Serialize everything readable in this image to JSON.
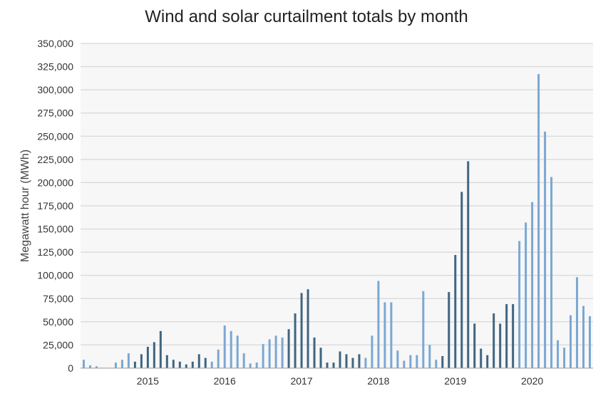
{
  "chart_data": {
    "type": "bar",
    "title": "Wind and solar curtailment totals by month",
    "xlabel": "",
    "ylabel": "Megawatt hour (MWh)",
    "ylim": [
      0,
      350000
    ],
    "y_ticks": [
      "0",
      "25,000",
      "50,000",
      "75,000",
      "100,000",
      "125,000",
      "150,000",
      "175,000",
      "200,000",
      "225,000",
      "250,000",
      "275,000",
      "300,000",
      "325,000",
      "350,000"
    ],
    "x_tick_labels": [
      "2015",
      "2016",
      "2017",
      "2018",
      "2019",
      "2020"
    ],
    "x_tick_positions": [
      "2015-03",
      "2016-03",
      "2017-03",
      "2018-03",
      "2019-03",
      "2020-03"
    ],
    "categories": [
      "2014-05",
      "2014-06",
      "2014-07",
      "2014-08",
      "2014-09",
      "2014-10",
      "2014-11",
      "2014-12",
      "2015-01",
      "2015-02",
      "2015-03",
      "2015-04",
      "2015-05",
      "2015-06",
      "2015-07",
      "2015-08",
      "2015-09",
      "2015-10",
      "2015-11",
      "2015-12",
      "2016-01",
      "2016-02",
      "2016-03",
      "2016-04",
      "2016-05",
      "2016-06",
      "2016-07",
      "2016-08",
      "2016-09",
      "2016-10",
      "2016-11",
      "2016-12",
      "2017-01",
      "2017-02",
      "2017-03",
      "2017-04",
      "2017-05",
      "2017-06",
      "2017-07",
      "2017-08",
      "2017-09",
      "2017-10",
      "2017-11",
      "2017-12",
      "2018-01",
      "2018-02",
      "2018-03",
      "2018-04",
      "2018-05",
      "2018-06",
      "2018-07",
      "2018-08",
      "2018-09",
      "2018-10",
      "2018-11",
      "2018-12",
      "2019-01",
      "2019-02",
      "2019-03",
      "2019-04",
      "2019-05",
      "2019-06",
      "2019-07",
      "2019-08",
      "2019-09",
      "2019-10",
      "2019-11",
      "2019-12",
      "2020-01",
      "2020-02",
      "2020-03",
      "2020-04",
      "2020-05",
      "2020-06",
      "2020-07",
      "2020-08",
      "2020-09",
      "2020-10",
      "2020-11",
      "2020-12"
    ],
    "values": [
      9000,
      3000,
      2000,
      0,
      0,
      6000,
      9000,
      16000,
      7000,
      15000,
      23000,
      28000,
      40000,
      14000,
      9000,
      7000,
      4000,
      7000,
      15000,
      11000,
      7000,
      20000,
      46000,
      40000,
      35000,
      16000,
      5000,
      6000,
      26000,
      31000,
      35000,
      33000,
      42000,
      59000,
      81000,
      85000,
      33000,
      22000,
      6000,
      6000,
      18000,
      15000,
      11000,
      15000,
      11000,
      35000,
      94000,
      71000,
      71000,
      19000,
      8000,
      14000,
      14000,
      83000,
      25000,
      9000,
      13000,
      82000,
      122000,
      190000,
      223000,
      48000,
      21000,
      14000,
      59000,
      48000,
      69000,
      69000,
      137000,
      157000,
      179000,
      317000,
      255000,
      206000,
      30000,
      22000,
      57000,
      98000,
      67000,
      56000
    ],
    "bar_colors": [
      "#7ba7d3",
      "#7ba7d3",
      "#7ba7d3",
      "#7ba7d3",
      "#7ba7d3",
      "#7ba7d3",
      "#7ba7d3",
      "#7ba7d3",
      "#3f6581",
      "#3f6581",
      "#3f6581",
      "#3f6581",
      "#3f6581",
      "#3f6581",
      "#3f6581",
      "#3f6581",
      "#3f6581",
      "#3f6581",
      "#3f6581",
      "#3f6581",
      "#7ba7d3",
      "#7ba7d3",
      "#7ba7d3",
      "#7ba7d3",
      "#7ba7d3",
      "#7ba7d3",
      "#7ba7d3",
      "#7ba7d3",
      "#7ba7d3",
      "#7ba7d3",
      "#7ba7d3",
      "#7ba7d3",
      "#3f6581",
      "#3f6581",
      "#3f6581",
      "#3f6581",
      "#3f6581",
      "#3f6581",
      "#3f6581",
      "#3f6581",
      "#3f6581",
      "#3f6581",
      "#3f6581",
      "#3f6581",
      "#7ba7d3",
      "#7ba7d3",
      "#7ba7d3",
      "#7ba7d3",
      "#7ba7d3",
      "#7ba7d3",
      "#7ba7d3",
      "#7ba7d3",
      "#7ba7d3",
      "#7ba7d3",
      "#7ba7d3",
      "#7ba7d3",
      "#3f6581",
      "#3f6581",
      "#3f6581",
      "#3f6581",
      "#3f6581",
      "#3f6581",
      "#3f6581",
      "#3f6581",
      "#3f6581",
      "#3f6581",
      "#3f6581",
      "#3f6581",
      "#7ba7d3",
      "#7ba7d3",
      "#7ba7d3",
      "#7ba7d3",
      "#7ba7d3",
      "#7ba7d3",
      "#7ba7d3",
      "#7ba7d3",
      "#7ba7d3",
      "#7ba7d3",
      "#7ba7d3",
      "#7ba7d3"
    ],
    "grid": true,
    "legend": "none",
    "colors": {
      "plot_background": "#f7f7f7",
      "gridline": "#d0d0d0",
      "axis": "#999999"
    }
  }
}
